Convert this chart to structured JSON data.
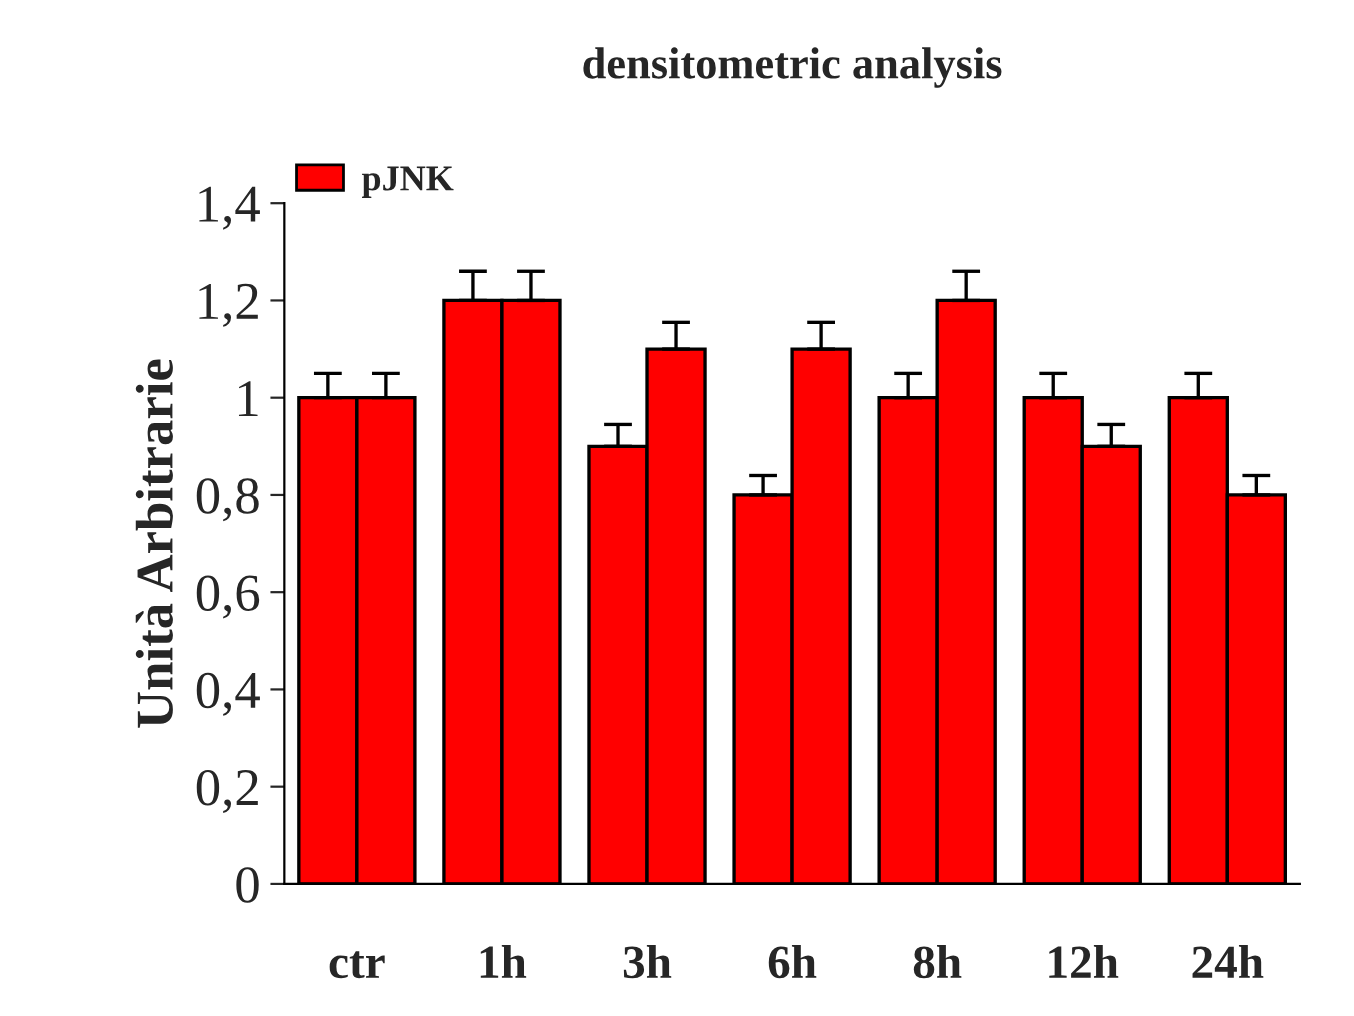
{
  "chart_data": {
    "type": "bar",
    "title": "densitometric analysis",
    "ylabel": "Unità Arbitrarie",
    "categories": [
      "ctr",
      "1h",
      "3h",
      "6h",
      "8h",
      "12h",
      "24h"
    ],
    "series": [
      {
        "name": "pJNK",
        "color": "#ff0000",
        "values": [
          1,
          1.2,
          0.9,
          0.8,
          1,
          1,
          1
        ],
        "errors": [
          [
            1,
            1.05
          ],
          [
            1.2,
            1.26
          ],
          [
            0.9,
            0.945
          ],
          [
            0.8,
            0.84
          ],
          [
            1,
            1.05
          ],
          [
            1,
            1.05
          ],
          [
            1,
            1.05
          ]
        ]
      },
      {
        "color": "#ff0000",
        "values": [
          1,
          1.2,
          1.1,
          1.1,
          1.2,
          0.9,
          0.8
        ],
        "errors": [
          [
            1,
            1.05
          ],
          [
            1.2,
            1.26
          ],
          [
            1.1,
            1.155
          ],
          [
            1.1,
            1.155
          ],
          [
            1.2,
            1.26
          ],
          [
            0.9,
            0.945
          ],
          [
            0.8,
            0.84
          ]
        ]
      }
    ],
    "ylim": [
      0,
      1.4
    ],
    "yticks": [
      0,
      {
        "value": 0.2,
        "label": "0,2"
      },
      {
        "value": 0.4,
        "label": "0,4"
      },
      {
        "value": 0.6,
        "label": "0,6"
      },
      {
        "value": 0.8,
        "label": "0,8"
      },
      1,
      {
        "value": 1.2,
        "label": "1,2"
      },
      {
        "value": 1.4,
        "label": "1,4"
      }
    ],
    "legend": "top left",
    "grid": false
  }
}
